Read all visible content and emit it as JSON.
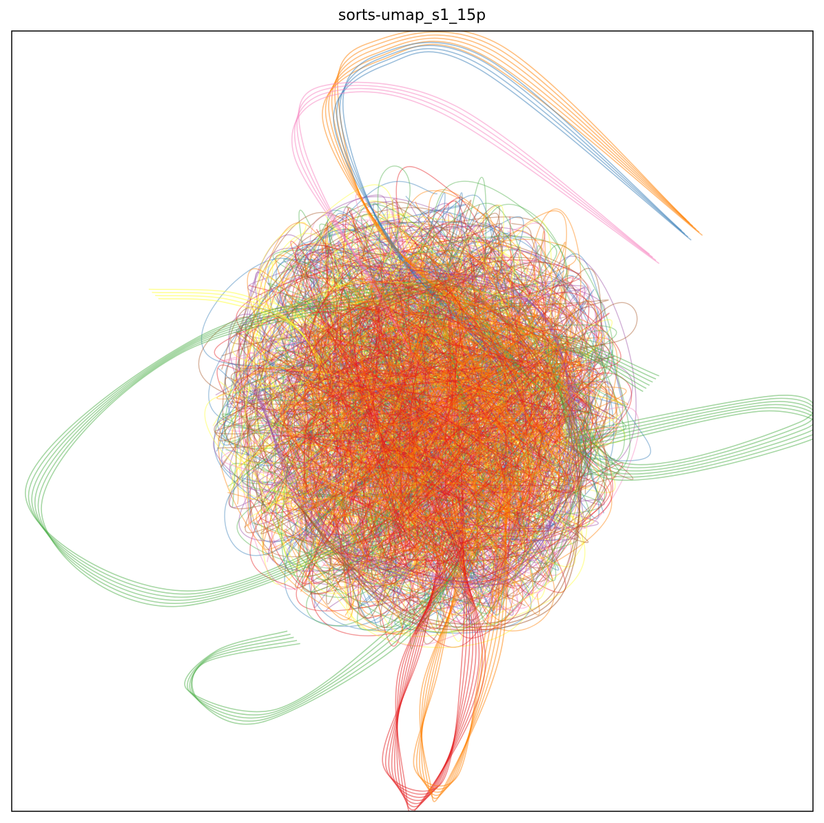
{
  "chart_data": {
    "type": "line",
    "title": "sorts-umap_s1_15p",
    "xlabel": "",
    "ylabel": "",
    "xticks": [],
    "yticks": [],
    "grid": false,
    "legend": "none",
    "line_alpha": 0.5,
    "palette": [
      "#e41a1c",
      "#377eb8",
      "#4daf4a",
      "#984ea3",
      "#ff7f00",
      "#ffff33",
      "#a65628",
      "#f781bf"
    ],
    "note_series": "dense tangle of many semi-transparent trajectory curves; exact coordinates not recoverable",
    "series": [
      {
        "color": "#4daf4a",
        "repeats": 6,
        "x": [
          0.05,
          -0.55,
          -0.95,
          -0.55,
          0.1,
          0.05,
          0.3
        ],
        "y": [
          0.35,
          0.2,
          -0.2,
          -0.45,
          -0.1,
          0.35,
          0.1
        ]
      },
      {
        "color": "#4daf4a",
        "repeats": 6,
        "x": [
          0.4,
          0.9,
          0.98,
          0.5,
          0.35,
          0.6
        ],
        "y": [
          -0.05,
          0.05,
          -0.02,
          -0.12,
          0.2,
          0.1
        ]
      },
      {
        "color": "#4daf4a",
        "repeats": 5,
        "x": [
          -0.3,
          -0.5,
          -0.55,
          -0.35,
          -0.05,
          0.1,
          -0.2
        ],
        "y": [
          -0.55,
          -0.6,
          -0.7,
          -0.75,
          -0.55,
          -0.35,
          -0.2
        ]
      },
      {
        "color": "#ff7f00",
        "repeats": 6,
        "x": [
          0.7,
          0.2,
          -0.1,
          -0.2,
          -0.05,
          0.3
        ],
        "y": [
          0.5,
          0.95,
          0.95,
          0.8,
          0.45,
          0.2
        ]
      },
      {
        "color": "#377eb8",
        "repeats": 4,
        "x": [
          0.68,
          0.18,
          -0.08,
          -0.18,
          -0.03,
          0.25
        ],
        "y": [
          0.48,
          0.92,
          0.93,
          0.78,
          0.42,
          0.15
        ]
      },
      {
        "color": "#f781bf",
        "repeats": 4,
        "x": [
          0.6,
          0.1,
          -0.22,
          -0.28,
          -0.1,
          0.1
        ],
        "y": [
          0.42,
          0.8,
          0.85,
          0.7,
          0.35,
          0.0
        ]
      },
      {
        "color": "#e41a1c",
        "repeats": 8,
        "x": [
          0.1,
          0.0,
          -0.05,
          0.05,
          0.15,
          0.1
        ],
        "y": [
          -0.3,
          -0.6,
          -0.9,
          -0.95,
          -0.6,
          -0.2
        ]
      },
      {
        "color": "#ff7f00",
        "repeats": 6,
        "x": [
          0.15,
          0.05,
          0.02,
          0.1,
          0.2,
          0.25
        ],
        "y": [
          -0.3,
          -0.65,
          -0.9,
          -0.92,
          -0.55,
          -0.1
        ]
      },
      {
        "color": "#ffff33",
        "repeats": 4,
        "x": [
          -0.65,
          -0.45,
          -0.3,
          -0.2
        ],
        "y": [
          0.33,
          0.32,
          0.25,
          0.1
        ]
      },
      {
        "color": "#984ea3",
        "repeats": 4,
        "x": [
          -0.4,
          -0.2,
          0.2,
          0.4,
          0.3,
          -0.1
        ],
        "y": [
          0.1,
          -0.3,
          -0.4,
          -0.1,
          0.3,
          0.4
        ]
      },
      {
        "color": "#a65628",
        "repeats": 3,
        "x": [
          -0.3,
          0.0,
          0.35,
          0.4,
          0.1,
          -0.25
        ],
        "y": [
          -0.2,
          -0.5,
          -0.45,
          0.0,
          0.35,
          0.2
        ]
      }
    ]
  }
}
